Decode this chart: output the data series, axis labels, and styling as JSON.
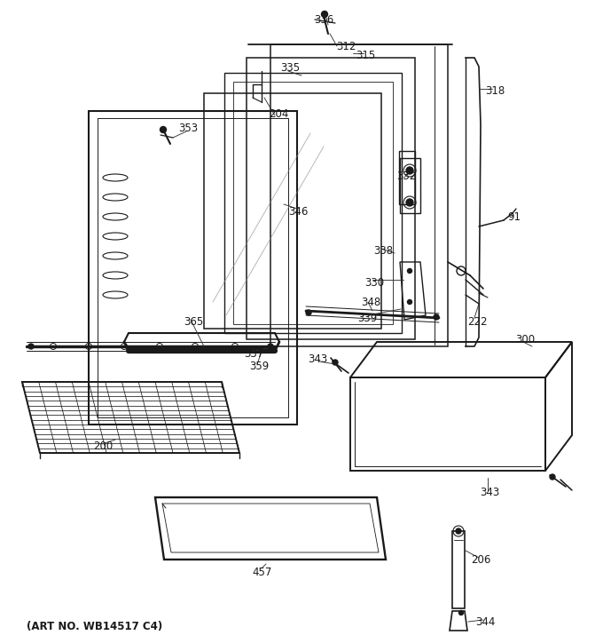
{
  "art_no": "(ART NO. WB14517 C4)",
  "bg_color": "#ffffff",
  "lc": "#1a1a1a",
  "fig_width": 6.8,
  "fig_height": 7.24,
  "dpi": 100
}
